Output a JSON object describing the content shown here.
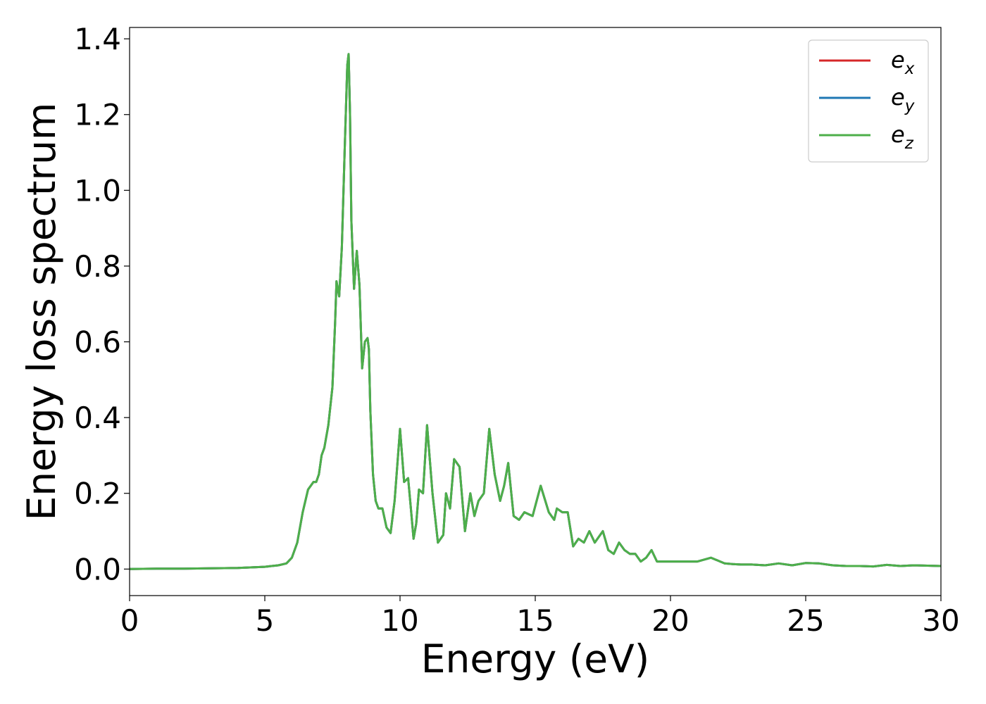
{
  "chart_data": {
    "type": "line",
    "title": "",
    "xlabel": "Energy (eV)",
    "ylabel": "Energy loss spectrum",
    "xlim": [
      0,
      30
    ],
    "ylim": [
      -0.07,
      1.43
    ],
    "xticks": [
      0,
      5,
      10,
      15,
      20,
      25,
      30
    ],
    "yticks": [
      0.0,
      0.2,
      0.4,
      0.6,
      0.8,
      1.0,
      1.2,
      1.4
    ],
    "ytick_labels": [
      "0.0",
      "0.2",
      "0.4",
      "0.6",
      "0.8",
      "1.0",
      "1.2",
      "1.4"
    ],
    "xtick_labels": [
      "0",
      "5",
      "10",
      "15",
      "20",
      "25",
      "30"
    ],
    "grid": false,
    "legend_position": "top-right",
    "x": [
      0,
      1,
      2,
      3,
      4,
      5,
      5.5,
      5.8,
      6.0,
      6.2,
      6.4,
      6.6,
      6.8,
      6.9,
      7.0,
      7.1,
      7.2,
      7.35,
      7.5,
      7.6,
      7.65,
      7.75,
      7.85,
      7.95,
      8.05,
      8.1,
      8.15,
      8.2,
      8.3,
      8.4,
      8.5,
      8.6,
      8.7,
      8.8,
      8.85,
      8.9,
      9.0,
      9.1,
      9.2,
      9.35,
      9.5,
      9.65,
      9.8,
      10.0,
      10.15,
      10.3,
      10.4,
      10.5,
      10.6,
      10.7,
      10.85,
      11.0,
      11.2,
      11.4,
      11.6,
      11.7,
      11.85,
      12.0,
      12.2,
      12.4,
      12.6,
      12.75,
      12.9,
      13.1,
      13.3,
      13.5,
      13.7,
      13.85,
      14.0,
      14.2,
      14.4,
      14.6,
      14.9,
      15.2,
      15.5,
      15.7,
      15.8,
      16.0,
      16.2,
      16.4,
      16.6,
      16.8,
      17.0,
      17.2,
      17.5,
      17.7,
      17.9,
      18.1,
      18.3,
      18.5,
      18.7,
      18.9,
      19.1,
      19.3,
      19.5,
      20.0,
      20.3,
      20.6,
      21.0,
      21.5,
      22.0,
      22.3,
      22.6,
      23.0,
      23.5,
      24.0,
      24.5,
      25.0,
      25.5,
      26.0,
      26.5,
      27.0,
      27.5,
      28.0,
      28.5,
      29.0,
      29.5,
      30.0
    ],
    "series": [
      {
        "name": "e_x",
        "color": "#d62728",
        "values": [
          0.0,
          0.001,
          0.001,
          0.002,
          0.003,
          0.006,
          0.01,
          0.015,
          0.03,
          0.07,
          0.15,
          0.21,
          0.23,
          0.23,
          0.25,
          0.3,
          0.32,
          0.38,
          0.48,
          0.65,
          0.76,
          0.72,
          0.85,
          1.1,
          1.33,
          1.36,
          1.2,
          0.92,
          0.74,
          0.84,
          0.75,
          0.53,
          0.6,
          0.61,
          0.58,
          0.42,
          0.25,
          0.18,
          0.16,
          0.16,
          0.11,
          0.095,
          0.18,
          0.37,
          0.23,
          0.24,
          0.16,
          0.08,
          0.12,
          0.21,
          0.2,
          0.38,
          0.2,
          0.07,
          0.09,
          0.2,
          0.16,
          0.29,
          0.27,
          0.1,
          0.2,
          0.14,
          0.18,
          0.2,
          0.37,
          0.25,
          0.18,
          0.22,
          0.28,
          0.14,
          0.13,
          0.15,
          0.14,
          0.22,
          0.15,
          0.13,
          0.16,
          0.15,
          0.15,
          0.06,
          0.08,
          0.07,
          0.1,
          0.07,
          0.1,
          0.05,
          0.04,
          0.07,
          0.05,
          0.04,
          0.04,
          0.02,
          0.03,
          0.05,
          0.02,
          0.02,
          0.02,
          0.02,
          0.02,
          0.03,
          0.015,
          0.013,
          0.012,
          0.012,
          0.01,
          0.015,
          0.01,
          0.016,
          0.015,
          0.01,
          0.008,
          0.008,
          0.007,
          0.011,
          0.008,
          0.01,
          0.009,
          0.008
        ]
      },
      {
        "name": "e_y",
        "color": "#1f77b4",
        "values": [
          0.0,
          0.001,
          0.001,
          0.002,
          0.003,
          0.006,
          0.01,
          0.015,
          0.03,
          0.07,
          0.15,
          0.21,
          0.23,
          0.23,
          0.25,
          0.3,
          0.32,
          0.38,
          0.48,
          0.65,
          0.76,
          0.72,
          0.85,
          1.1,
          1.33,
          1.36,
          1.2,
          0.92,
          0.74,
          0.84,
          0.75,
          0.53,
          0.6,
          0.61,
          0.58,
          0.42,
          0.25,
          0.18,
          0.16,
          0.16,
          0.11,
          0.095,
          0.18,
          0.37,
          0.23,
          0.24,
          0.16,
          0.08,
          0.12,
          0.21,
          0.2,
          0.38,
          0.2,
          0.07,
          0.09,
          0.2,
          0.16,
          0.29,
          0.27,
          0.1,
          0.2,
          0.14,
          0.18,
          0.2,
          0.37,
          0.25,
          0.18,
          0.22,
          0.28,
          0.14,
          0.13,
          0.15,
          0.14,
          0.22,
          0.15,
          0.13,
          0.16,
          0.15,
          0.15,
          0.06,
          0.08,
          0.07,
          0.1,
          0.07,
          0.1,
          0.05,
          0.04,
          0.07,
          0.05,
          0.04,
          0.04,
          0.02,
          0.03,
          0.05,
          0.02,
          0.02,
          0.02,
          0.02,
          0.02,
          0.03,
          0.015,
          0.013,
          0.012,
          0.012,
          0.01,
          0.015,
          0.01,
          0.016,
          0.015,
          0.01,
          0.008,
          0.008,
          0.007,
          0.011,
          0.008,
          0.01,
          0.009,
          0.008
        ]
      },
      {
        "name": "e_z",
        "color": "#4daf4a",
        "values": [
          0.0,
          0.001,
          0.001,
          0.002,
          0.003,
          0.006,
          0.01,
          0.015,
          0.03,
          0.07,
          0.15,
          0.21,
          0.23,
          0.23,
          0.25,
          0.3,
          0.32,
          0.38,
          0.48,
          0.65,
          0.76,
          0.72,
          0.85,
          1.1,
          1.33,
          1.36,
          1.2,
          0.92,
          0.74,
          0.84,
          0.75,
          0.53,
          0.6,
          0.61,
          0.58,
          0.42,
          0.25,
          0.18,
          0.16,
          0.16,
          0.11,
          0.095,
          0.18,
          0.37,
          0.23,
          0.24,
          0.16,
          0.08,
          0.12,
          0.21,
          0.2,
          0.38,
          0.2,
          0.07,
          0.09,
          0.2,
          0.16,
          0.29,
          0.27,
          0.1,
          0.2,
          0.14,
          0.18,
          0.2,
          0.37,
          0.25,
          0.18,
          0.22,
          0.28,
          0.14,
          0.13,
          0.15,
          0.14,
          0.22,
          0.15,
          0.13,
          0.16,
          0.15,
          0.15,
          0.06,
          0.08,
          0.07,
          0.1,
          0.07,
          0.1,
          0.05,
          0.04,
          0.07,
          0.05,
          0.04,
          0.04,
          0.02,
          0.03,
          0.05,
          0.02,
          0.02,
          0.02,
          0.02,
          0.02,
          0.03,
          0.015,
          0.013,
          0.012,
          0.012,
          0.01,
          0.015,
          0.01,
          0.016,
          0.015,
          0.01,
          0.008,
          0.008,
          0.007,
          0.011,
          0.008,
          0.01,
          0.009,
          0.008
        ]
      }
    ],
    "legend": [
      {
        "base": "e",
        "sub": "x",
        "color": "#d62728"
      },
      {
        "base": "e",
        "sub": "y",
        "color": "#1f77b4"
      },
      {
        "base": "e",
        "sub": "z",
        "color": "#4daf4a"
      }
    ]
  }
}
